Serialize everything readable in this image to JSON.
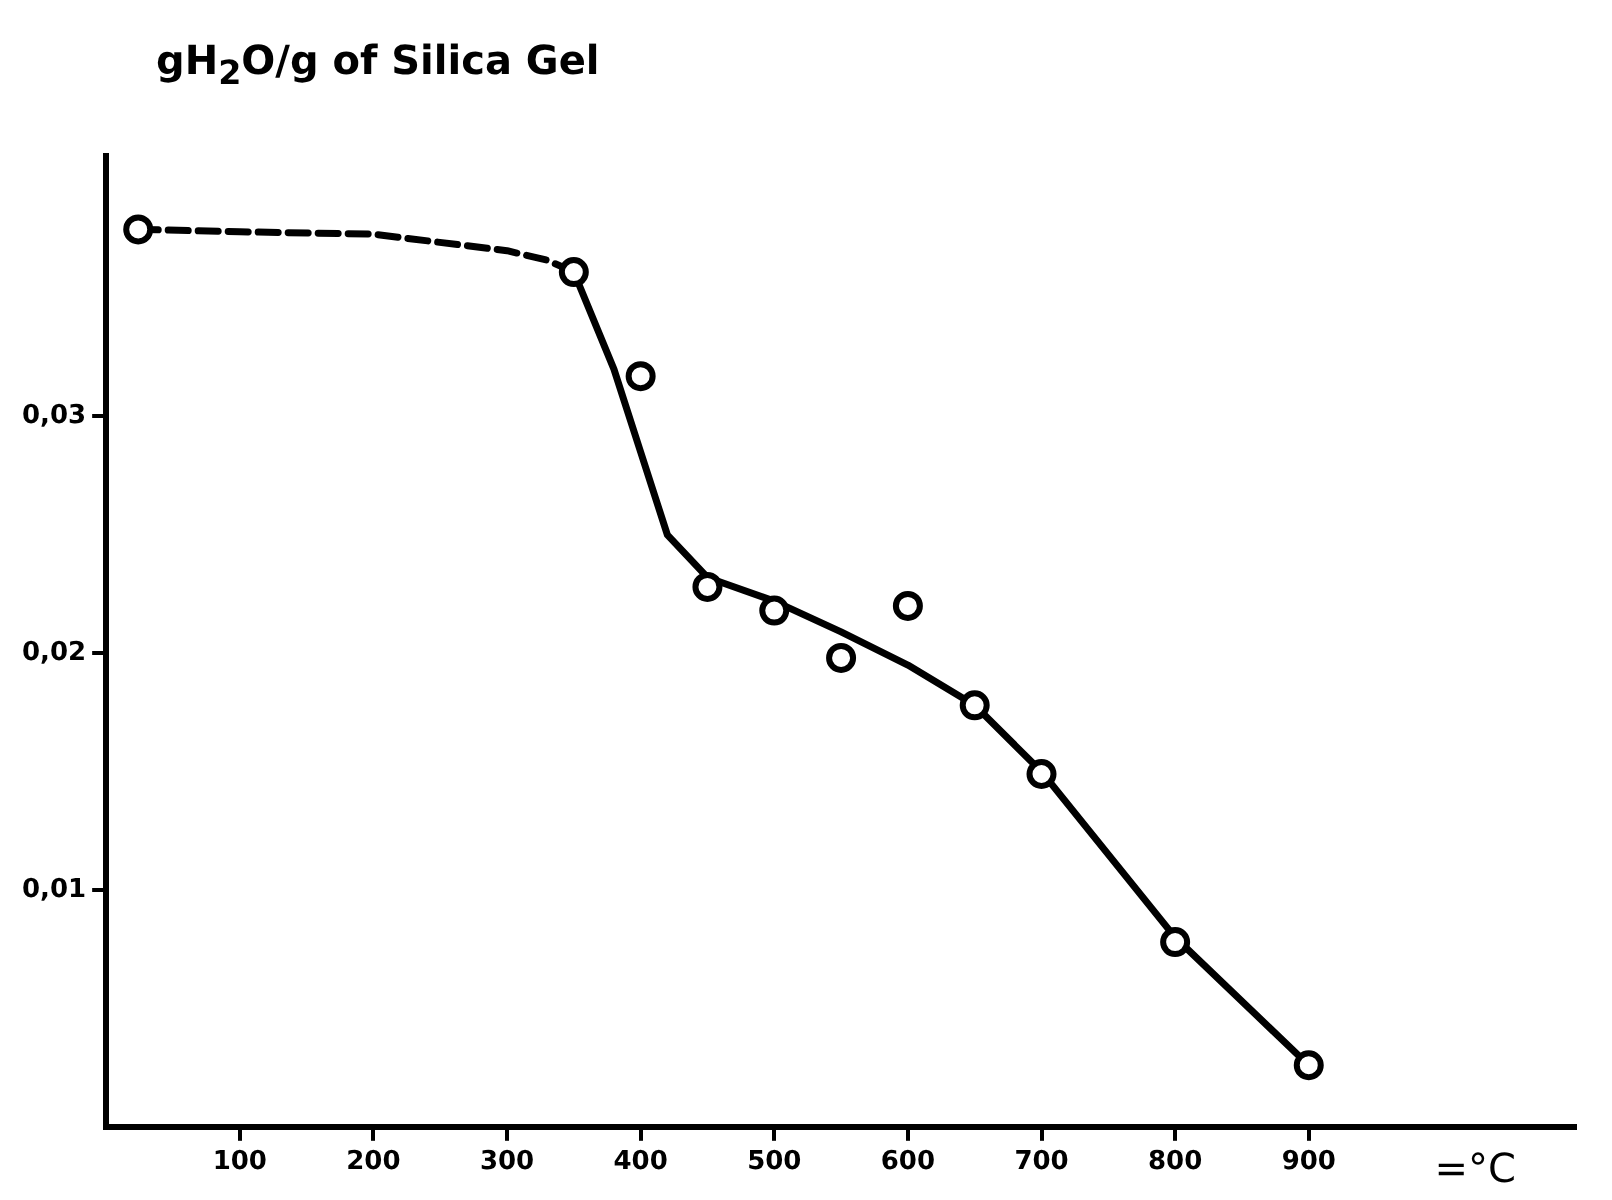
{
  "chart_data": {
    "type": "scatter",
    "ylabel": "gH$_{2}$O/g of Silica Gel",
    "xlabel": "=°C",
    "xlim": [
      0,
      1100
    ],
    "xticks": [
      100,
      200,
      300,
      400,
      500,
      600,
      700,
      800,
      900
    ],
    "ylim": [
      0,
      0.041
    ],
    "yticks": [
      {
        "value": 0.01,
        "label": "0,01"
      },
      {
        "value": 0.02,
        "label": "0,02"
      },
      {
        "value": 0.03,
        "label": "0,03"
      }
    ],
    "grid": false,
    "legend": false,
    "series": [
      {
        "type": "scatter",
        "color": "#000000",
        "marker": "circle",
        "x": [
          24,
          350,
          400,
          450,
          500,
          550,
          600,
          650,
          700,
          800,
          900
        ],
        "values": [
          0.0379,
          0.0361,
          0.0317,
          0.0228,
          0.0218,
          0.0198,
          0.022,
          0.0178,
          0.0149,
          0.0078,
          0.0026
        ]
      },
      {
        "type": "line",
        "color": "#000000",
        "marker": "none",
        "line_style": "dashed",
        "x": [
          24,
          100,
          200,
          300,
          330,
          350
        ],
        "values": [
          0.0379,
          0.0378,
          0.0377,
          0.037,
          0.0366,
          0.0361
        ]
      },
      {
        "type": "line",
        "color": "#000000",
        "marker": "none",
        "line_style": "solid",
        "x": [
          350,
          380,
          400,
          420,
          450,
          500,
          550,
          600,
          650,
          700,
          800,
          900
        ],
        "values": [
          0.0361,
          0.032,
          0.0285,
          0.025,
          0.0232,
          0.0222,
          0.0209,
          0.0195,
          0.0178,
          0.015,
          0.008,
          0.0026
        ]
      }
    ]
  }
}
